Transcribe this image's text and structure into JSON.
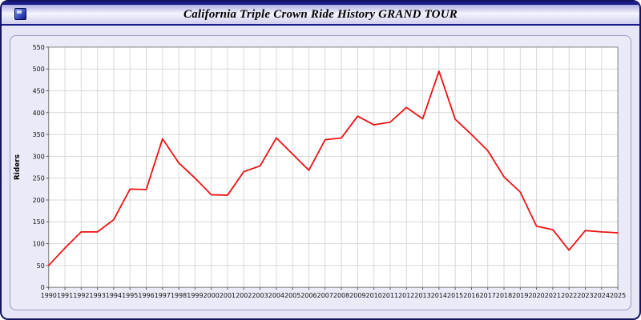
{
  "window": {
    "title": "California Triple Crown Ride History GRAND TOUR"
  },
  "colors": {
    "line": "#ee1010",
    "titlebar_navy": "#1b1b8e",
    "panel_bg": "#eaeaf8",
    "plot_bg": "#ffffff",
    "grid": "#d8d8d8",
    "plot_border": "#808080"
  },
  "chart_data": {
    "type": "line",
    "title": "California Triple Crown Ride History GRAND TOUR",
    "xlabel": "",
    "ylabel": "Riders",
    "ylim": [
      0,
      550
    ],
    "ytick_step": 50,
    "grid": true,
    "legend": "none",
    "line_color": "#ee1010",
    "categories": [
      "1990",
      "1991",
      "1992",
      "1993",
      "1994",
      "1995",
      "1996",
      "1997",
      "1998",
      "1999",
      "2000",
      "2001",
      "2002",
      "2003",
      "2004",
      "2005",
      "2006",
      "2007",
      "2008",
      "2009",
      "2010",
      "2011",
      "2012",
      "2013",
      "2014",
      "2015",
      "2016",
      "2017",
      "2018",
      "2019",
      "2020",
      "2021",
      "2022",
      "2023",
      "2024",
      "2025"
    ],
    "series": [
      {
        "name": "Riders",
        "values": [
          50,
          90,
          127,
          127,
          155,
          225,
          224,
          340,
          285,
          250,
          212,
          211,
          265,
          278,
          342,
          305,
          268,
          338,
          342,
          392,
          372,
          378,
          412,
          386,
          495,
          385,
          350,
          313,
          253,
          218,
          140,
          132,
          85,
          130,
          127,
          125
        ]
      }
    ]
  }
}
